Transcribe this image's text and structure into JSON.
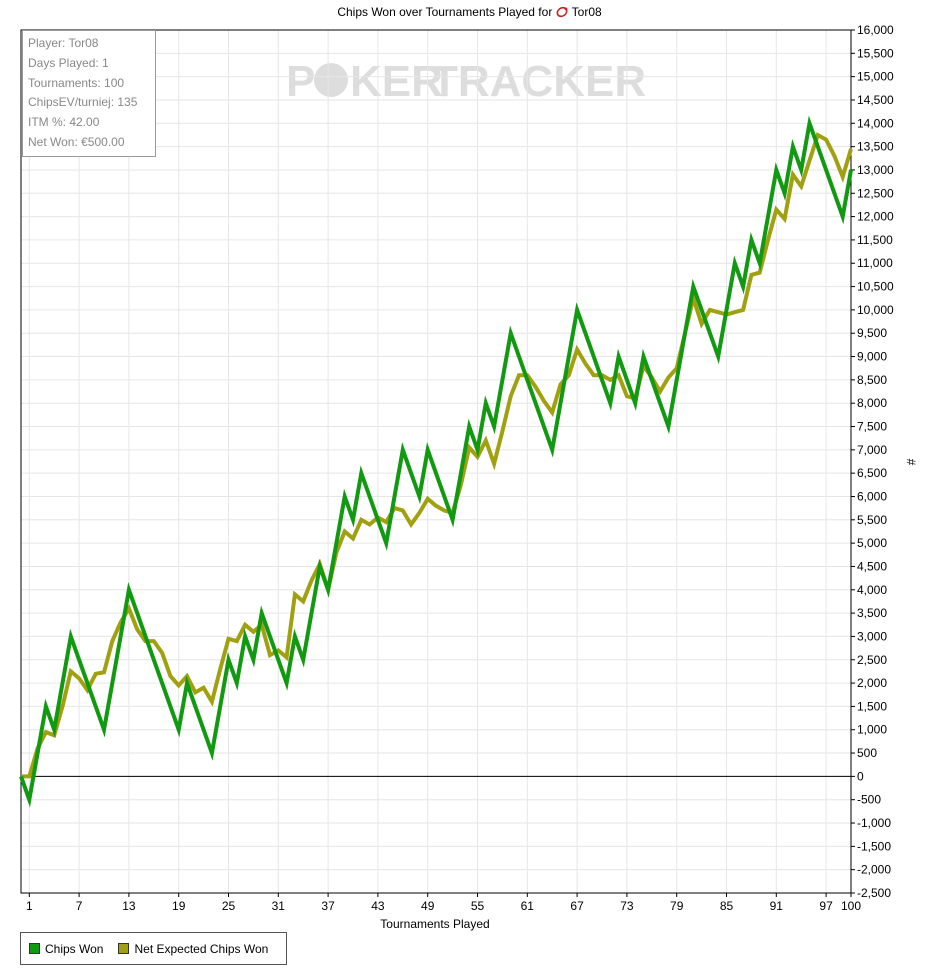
{
  "title": {
    "prefix": "Chips Won over Tournaments Played for ",
    "player": "Tor08",
    "icon": "pokerstars-icon"
  },
  "watermark": {
    "part1": "P",
    "part2": "KER",
    "part3": "TRACKER"
  },
  "stats": [
    "Player: Tor08",
    "Days Played: 1",
    "Tournaments: 100",
    "ChipsEV/turniej: 135",
    "ITM %: 42.00",
    "Net Won: €500.00"
  ],
  "legend": [
    {
      "label": "Chips Won",
      "color": "#119911"
    },
    {
      "label": "Net Expected Chips Won",
      "color": "#a0a010"
    }
  ],
  "chart_data": {
    "type": "line",
    "xlabel": "Tournaments Played",
    "ylabel": "#",
    "xlim": [
      0,
      100
    ],
    "ylim": [
      -2500,
      16000
    ],
    "x_ticks": [
      1,
      7,
      13,
      19,
      25,
      31,
      37,
      43,
      49,
      55,
      61,
      67,
      73,
      79,
      85,
      91,
      97,
      100
    ],
    "y_ticks": [
      -2500,
      -2000,
      -1500,
      -1000,
      -500,
      0,
      500,
      1000,
      1500,
      2000,
      2500,
      3000,
      3500,
      4000,
      4500,
      5000,
      5500,
      6000,
      6500,
      7000,
      7500,
      8000,
      8500,
      9000,
      9500,
      10000,
      10500,
      11000,
      11500,
      12000,
      12500,
      13000,
      13500,
      14000,
      14500,
      15000,
      15500,
      16000
    ],
    "y_tick_labels": [
      "-2,500",
      "-2,000",
      "-1,500",
      "-1,000",
      "-500",
      "0",
      "500",
      "1,000",
      "1,500",
      "2,000",
      "2,500",
      "3,000",
      "3,500",
      "4,000",
      "4,500",
      "5,000",
      "5,500",
      "6,000",
      "6,500",
      "7,000",
      "7,500",
      "8,000",
      "8,500",
      "9,000",
      "9,500",
      "10,000",
      "10,500",
      "11,000",
      "11,500",
      "12,000",
      "12,500",
      "13,000",
      "13,500",
      "14,000",
      "14,500",
      "15,000",
      "15,500",
      "16,000"
    ],
    "grid": true,
    "legend_position": "bottom-left",
    "series": [
      {
        "name": "Chips Won",
        "color": "#119911",
        "x": [
          0,
          1,
          2,
          3,
          4,
          5,
          6,
          7,
          8,
          9,
          10,
          11,
          12,
          13,
          14,
          15,
          16,
          17,
          18,
          19,
          20,
          21,
          22,
          23,
          24,
          25,
          26,
          27,
          28,
          29,
          30,
          31,
          32,
          33,
          34,
          35,
          36,
          37,
          38,
          39,
          40,
          41,
          42,
          43,
          44,
          45,
          46,
          47,
          48,
          49,
          50,
          51,
          52,
          53,
          54,
          55,
          56,
          57,
          58,
          59,
          60,
          61,
          62,
          63,
          64,
          65,
          66,
          67,
          68,
          69,
          70,
          71,
          72,
          73,
          74,
          75,
          76,
          77,
          78,
          79,
          80,
          81,
          82,
          83,
          84,
          85,
          86,
          87,
          88,
          89,
          90,
          91,
          92,
          93,
          94,
          95,
          96,
          97,
          98,
          99,
          100
        ],
        "y": [
          0,
          -500,
          500,
          1500,
          1000,
          2000,
          3000,
          2500,
          2000,
          1500,
          1000,
          2000,
          3000,
          4000,
          3500,
          3000,
          2500,
          2000,
          1500,
          1000,
          2000,
          1500,
          1000,
          500,
          1500,
          2500,
          2000,
          3000,
          2500,
          3500,
          3000,
          2500,
          2000,
          3000,
          2500,
          3500,
          4500,
          4000,
          5000,
          6000,
          5500,
          6500,
          6000,
          5500,
          5000,
          6000,
          7000,
          6500,
          6000,
          7000,
          6500,
          6000,
          5500,
          6500,
          7500,
          7000,
          8000,
          7500,
          8500,
          9500,
          9000,
          8500,
          8000,
          7500,
          7000,
          8000,
          9000,
          10000,
          9500,
          9000,
          8500,
          8000,
          9000,
          8500,
          8000,
          9000,
          8500,
          8000,
          7500,
          8500,
          9500,
          10500,
          10000,
          9500,
          9000,
          10000,
          11000,
          10500,
          11500,
          11000,
          12000,
          13000,
          12500,
          13500,
          13000,
          14000,
          13500,
          13000,
          12500,
          12000,
          13000
        ]
      },
      {
        "name": "Net Expected Chips Won",
        "color": "#a0a010",
        "x": [
          0,
          1,
          2,
          3,
          4,
          5,
          6,
          7,
          8,
          9,
          10,
          11,
          12,
          13,
          14,
          15,
          16,
          17,
          18,
          19,
          20,
          21,
          22,
          23,
          24,
          25,
          26,
          27,
          28,
          29,
          30,
          31,
          32,
          33,
          34,
          35,
          36,
          37,
          38,
          39,
          40,
          41,
          42,
          43,
          44,
          45,
          46,
          47,
          48,
          49,
          50,
          51,
          52,
          53,
          54,
          55,
          56,
          57,
          58,
          59,
          60,
          61,
          62,
          63,
          64,
          65,
          66,
          67,
          68,
          69,
          70,
          71,
          72,
          73,
          74,
          75,
          76,
          77,
          78,
          79,
          80,
          81,
          82,
          83,
          84,
          85,
          86,
          87,
          88,
          89,
          90,
          91,
          92,
          93,
          94,
          95,
          96,
          97,
          98,
          99,
          100
        ],
        "y": [
          0,
          0,
          600,
          950,
          880,
          1500,
          2250,
          2100,
          1850,
          2200,
          2230,
          2900,
          3300,
          3600,
          3150,
          2900,
          2900,
          2650,
          2150,
          1950,
          2150,
          1800,
          1900,
          1600,
          2300,
          2950,
          2900,
          3250,
          3100,
          3250,
          2600,
          2700,
          2550,
          3900,
          3750,
          4200,
          4550,
          4000,
          4800,
          5250,
          5100,
          5500,
          5400,
          5550,
          5450,
          5750,
          5700,
          5400,
          5650,
          5950,
          5800,
          5700,
          5650,
          6250,
          7050,
          6850,
          7200,
          6700,
          7400,
          8150,
          8600,
          8600,
          8350,
          8050,
          7800,
          8400,
          8600,
          9150,
          8850,
          8600,
          8600,
          8500,
          8600,
          8150,
          8100,
          8800,
          8550,
          8250,
          8550,
          8750,
          9500,
          10250,
          9700,
          10000,
          9950,
          9900,
          9950,
          10000,
          10750,
          10800,
          11500,
          12150,
          11950,
          12900,
          12650,
          13200,
          13750,
          13650,
          13300,
          12850,
          13450
        ]
      }
    ]
  }
}
